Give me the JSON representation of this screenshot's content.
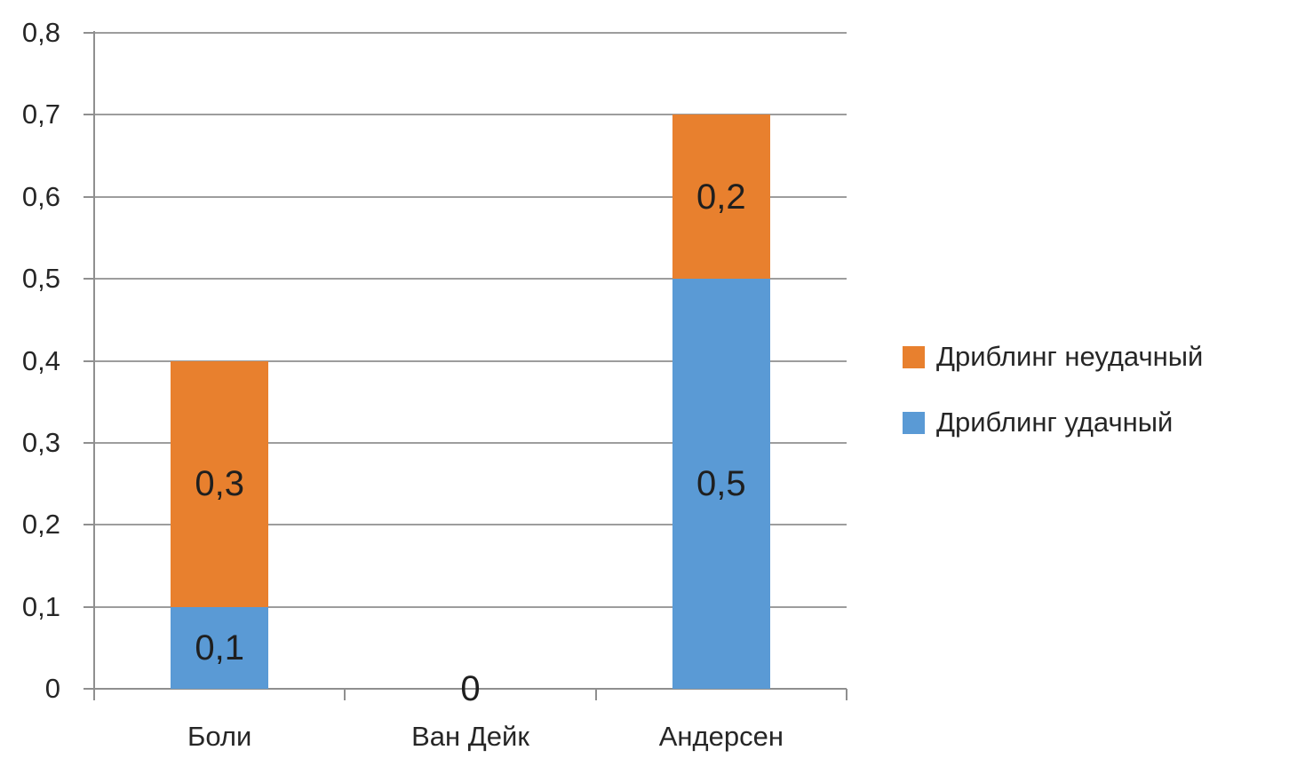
{
  "chart_data": {
    "type": "bar",
    "stacked": true,
    "title": "",
    "xlabel": "",
    "ylabel": "",
    "categories": [
      "Боли",
      "Ван Дейк",
      "Андерсен"
    ],
    "series": [
      {
        "name": "Дриблинг удачный",
        "color": "#5A9AD5",
        "values": [
          0.1,
          0,
          0.5
        ],
        "data_labels": [
          "0,1",
          "0",
          "0,5"
        ]
      },
      {
        "name": "Дриблинг неудачный",
        "color": "#E8802E",
        "values": [
          0.3,
          0,
          0.2
        ],
        "data_labels": [
          "0,3",
          "",
          "0,2"
        ]
      }
    ],
    "ylim": [
      0,
      0.8
    ],
    "ytick_step": 0.1,
    "yticks": [
      {
        "value": 0.0,
        "label": "0"
      },
      {
        "value": 0.1,
        "label": "0,1"
      },
      {
        "value": 0.2,
        "label": "0,2"
      },
      {
        "value": 0.3,
        "label": "0,3"
      },
      {
        "value": 0.4,
        "label": "0,4"
      },
      {
        "value": 0.5,
        "label": "0,5"
      },
      {
        "value": 0.6,
        "label": "0,6"
      },
      {
        "value": 0.7,
        "label": "0,7"
      },
      {
        "value": 0.8,
        "label": "0,8"
      }
    ],
    "grid": true,
    "legend_position": "right",
    "legend": [
      {
        "label": "Дриблинг неудачный",
        "color": "#E8802E"
      },
      {
        "label": "Дриблинг удачный",
        "color": "#5A9AD5"
      }
    ]
  },
  "colors": {
    "background": "#FFFFFF",
    "gridline": "#9D9D9D",
    "axis": "#8F8F8F",
    "text": "#262626",
    "data_label": "#1F1F1F"
  }
}
